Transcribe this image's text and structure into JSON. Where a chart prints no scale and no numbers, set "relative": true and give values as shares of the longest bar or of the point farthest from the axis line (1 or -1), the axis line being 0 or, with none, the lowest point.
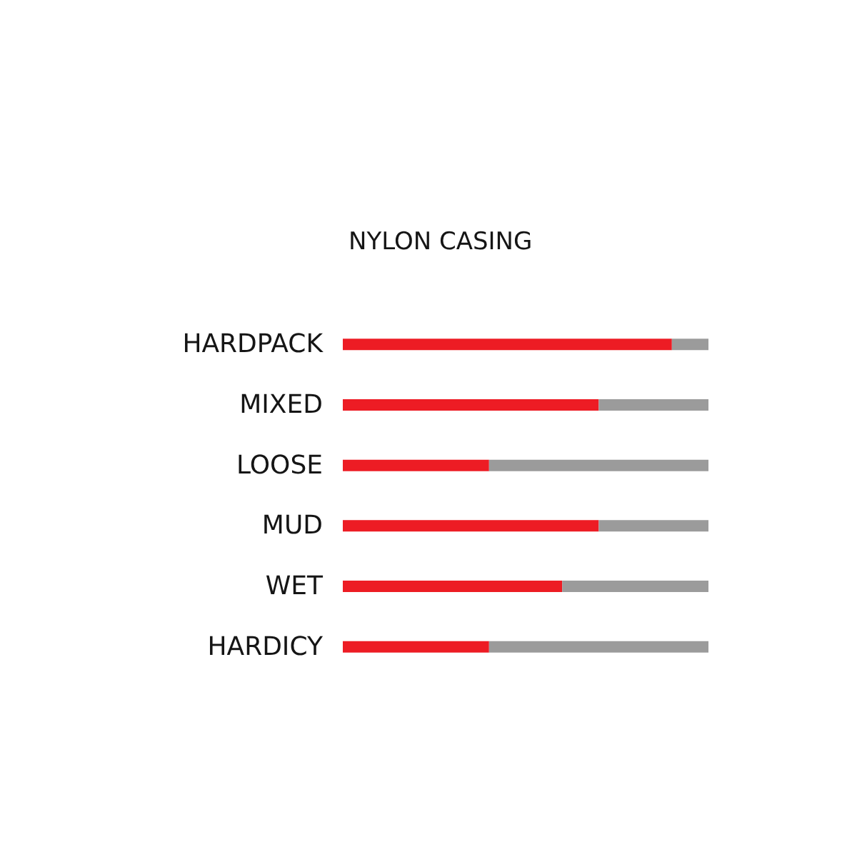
{
  "chart_data": {
    "type": "bar",
    "title": "NYLON CASING",
    "orientation": "horizontal",
    "stacked": true,
    "relative": true,
    "categories": [
      "HARDPACK",
      "MIXED",
      "LOOSE",
      "MUD",
      "WET",
      "HARDICY"
    ],
    "series": [
      {
        "color": "#ed1c24",
        "values": [
          0.9,
          0.7,
          0.4,
          0.7,
          0.6,
          0.4
        ]
      },
      {
        "color": "#9b9b9b",
        "values": [
          0.1,
          0.3,
          0.6,
          0.3,
          0.4,
          0.6
        ]
      }
    ]
  }
}
